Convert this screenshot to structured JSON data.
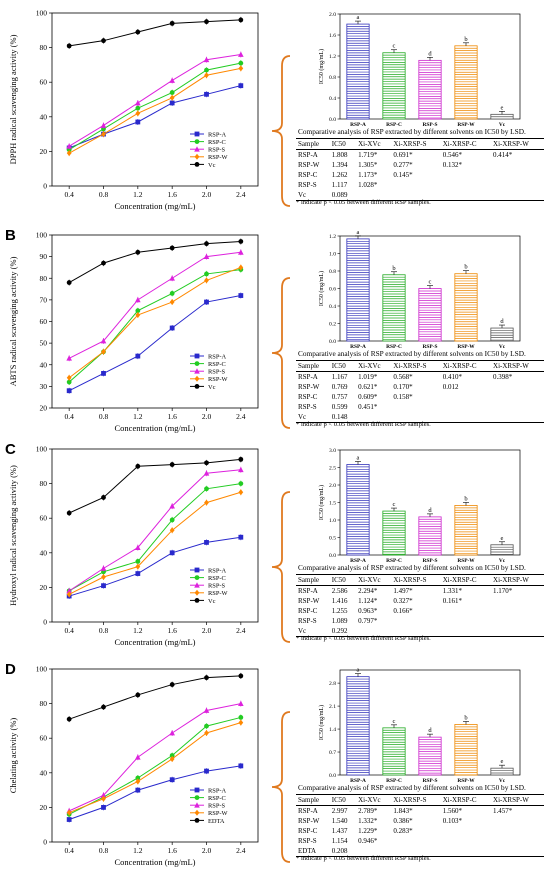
{
  "panels": [
    {
      "letter": "",
      "line": {
        "type": "line",
        "xlabel": "Concentration (mg/mL)",
        "ylabel": "DPPH radical scavenging activity (%)",
        "xlim": [
          0.2,
          2.6
        ],
        "ylim": [
          0,
          100
        ],
        "xticks": [
          "0.4",
          "0.8",
          "1.2",
          "1.6",
          "2.0",
          "2.4"
        ],
        "yticks": [
          0,
          20,
          40,
          60,
          80,
          100
        ],
        "x": [
          0.4,
          0.8,
          1.2,
          1.6,
          2.0,
          2.4
        ],
        "legend_position": "bottom-right",
        "series": [
          {
            "name": "RSP-A",
            "color": "#2929cc",
            "marker": "square",
            "values": [
              22,
              30,
              37,
              48,
              53,
              58
            ]
          },
          {
            "name": "RSP-C",
            "color": "#22cc22",
            "marker": "circle",
            "values": [
              21,
              33,
              45,
              54,
              67,
              71
            ]
          },
          {
            "name": "RSP-S",
            "color": "#dd22dd",
            "marker": "triangle",
            "values": [
              23,
              35,
              48,
              61,
              73,
              76
            ]
          },
          {
            "name": "RSP-W",
            "color": "#ff8800",
            "marker": "diamond",
            "values": [
              19,
              30,
              42,
              51,
              64,
              68
            ]
          },
          {
            "name": "Vc",
            "color": "#000000",
            "marker": "circle",
            "values": [
              81,
              84,
              89,
              94,
              95,
              96
            ]
          }
        ]
      },
      "bar": {
        "type": "bar",
        "ylabel": "IC50 (mg/mL)",
        "ylim": [
          0,
          2.0
        ],
        "yticks": [
          "0.0",
          "0.4",
          "0.8",
          "1.2",
          "1.6",
          "2.0"
        ],
        "categories": [
          "RSP-A",
          "RSP-C",
          "RSP-S",
          "RSP-W",
          "Vc"
        ],
        "values": [
          1.808,
          1.262,
          1.117,
          1.394,
          0.089
        ],
        "letters": [
          "a",
          "c",
          "d",
          "b",
          "e"
        ],
        "colors": [
          "#3333bb",
          "#22aa22",
          "#cc22cc",
          "#ee8800",
          "#555555"
        ]
      },
      "table": {
        "caption": "Comparative analysis of RSP extracted by different solvents on IC50 by LSD.",
        "header": [
          "Sample",
          "IC50",
          "Xi-XVc",
          "Xi-XRSP-S",
          "Xi-XRSP-C",
          "Xi-XRSP-W"
        ],
        "rows": [
          [
            "RSP-A",
            "1.808",
            "1.719*",
            "0.691*",
            "0.546*",
            "0.414*"
          ],
          [
            "RSP-W",
            "1.394",
            "1.305*",
            "0.277*",
            "0.132*",
            ""
          ],
          [
            "RSP-C",
            "1.262",
            "1.173*",
            "0.145*",
            "",
            ""
          ],
          [
            "RSP-S",
            "1.117",
            "1.028*",
            "",
            "",
            ""
          ],
          [
            "Vc",
            "0.089",
            "",
            "",
            "",
            ""
          ]
        ],
        "note": "* indicate p < 0.05 between different RSP samples."
      }
    },
    {
      "letter": "B",
      "line": {
        "type": "line",
        "xlabel": "Concentration (mg/mL)",
        "ylabel": "ABTS radical scavenging activity (%)",
        "xlim": [
          0.2,
          2.6
        ],
        "ylim": [
          20,
          100
        ],
        "xticks": [
          "0.4",
          "0.8",
          "1.2",
          "1.6",
          "2.0",
          "2.4"
        ],
        "yticks": [
          20,
          30,
          40,
          50,
          60,
          70,
          80,
          90,
          100
        ],
        "x": [
          0.4,
          0.8,
          1.2,
          1.6,
          2.0,
          2.4
        ],
        "legend_position": "bottom-right",
        "series": [
          {
            "name": "RSP-A",
            "color": "#2929cc",
            "marker": "square",
            "values": [
              28,
              36,
              44,
              57,
              69,
              72
            ]
          },
          {
            "name": "RSP-C",
            "color": "#22cc22",
            "marker": "circle",
            "values": [
              32,
              46,
              65,
              73,
              82,
              84
            ]
          },
          {
            "name": "RSP-S",
            "color": "#dd22dd",
            "marker": "triangle",
            "values": [
              43,
              51,
              70,
              80,
              90,
              92
            ]
          },
          {
            "name": "RSP-W",
            "color": "#ff8800",
            "marker": "diamond",
            "values": [
              34,
              46,
              63,
              69,
              79,
              85
            ]
          },
          {
            "name": "Vc",
            "color": "#000000",
            "marker": "circle",
            "values": [
              78,
              87,
              92,
              94,
              96,
              97
            ]
          }
        ]
      },
      "bar": {
        "type": "bar",
        "ylabel": "IC50 (mg/mL)",
        "ylim": [
          0,
          1.2
        ],
        "yticks": [
          "0.0",
          "0.2",
          "0.4",
          "0.6",
          "0.8",
          "1.0",
          "1.2"
        ],
        "categories": [
          "RSP-A",
          "RSP-C",
          "RSP-S",
          "RSP-W",
          "Vc"
        ],
        "values": [
          1.167,
          0.757,
          0.599,
          0.769,
          0.148
        ],
        "letters": [
          "a",
          "b",
          "c",
          "b",
          "d"
        ],
        "colors": [
          "#3333bb",
          "#22aa22",
          "#cc22cc",
          "#ee8800",
          "#555555"
        ]
      },
      "table": {
        "caption": "Comparative analysis of RSP extracted by different solvents on IC50 by LSD.",
        "header": [
          "Sample",
          "IC50",
          "Xi-XVc",
          "Xi-XRSP-S",
          "Xi-XRSP-C",
          "Xi-XRSP-W"
        ],
        "rows": [
          [
            "RSP-A",
            "1.167",
            "1.019*",
            "0.568*",
            "0.410*",
            "0.398*"
          ],
          [
            "RSP-W",
            "0.769",
            "0.621*",
            "0.170*",
            "0.012",
            ""
          ],
          [
            "RSP-C",
            "0.757",
            "0.609*",
            "0.158*",
            "",
            ""
          ],
          [
            "RSP-S",
            "0.599",
            "0.451*",
            "",
            "",
            ""
          ],
          [
            "Vc",
            "0.148",
            "",
            "",
            "",
            ""
          ]
        ],
        "note": "* indicate p < 0.05 between different RSP samples."
      }
    },
    {
      "letter": "C",
      "line": {
        "type": "line",
        "xlabel": "Concentration (mg/mL)",
        "ylabel": "Hydroxyl radical scavenging activity (%)",
        "xlim": [
          0.2,
          2.6
        ],
        "ylim": [
          0,
          100
        ],
        "xticks": [
          "0.4",
          "0.8",
          "1.2",
          "1.6",
          "2.0",
          "2.4"
        ],
        "yticks": [
          0,
          20,
          40,
          60,
          80,
          100
        ],
        "x": [
          0.4,
          0.8,
          1.2,
          1.6,
          2.0,
          2.4
        ],
        "legend_position": "bottom-right",
        "series": [
          {
            "name": "RSP-A",
            "color": "#2929cc",
            "marker": "square",
            "values": [
              15,
              21,
              28,
              40,
              46,
              49
            ]
          },
          {
            "name": "RSP-C",
            "color": "#22cc22",
            "marker": "circle",
            "values": [
              18,
              29,
              35,
              59,
              77,
              80
            ]
          },
          {
            "name": "RSP-S",
            "color": "#dd22dd",
            "marker": "triangle",
            "values": [
              18,
              31,
              43,
              67,
              86,
              88
            ]
          },
          {
            "name": "RSP-W",
            "color": "#ff8800",
            "marker": "diamond",
            "values": [
              16,
              26,
              32,
              53,
              69,
              75
            ]
          },
          {
            "name": "Vc",
            "color": "#000000",
            "marker": "circle",
            "values": [
              63,
              72,
              90,
              91,
              92,
              94
            ]
          }
        ]
      },
      "bar": {
        "type": "bar",
        "ylabel": "IC50 (mg/mL)",
        "ylim": [
          0,
          3.0
        ],
        "yticks": [
          "0.0",
          "0.5",
          "1.0",
          "1.5",
          "2.0",
          "2.5",
          "3.0"
        ],
        "categories": [
          "RSP-A",
          "RSP-C",
          "RSP-S",
          "RSP-W",
          "Vc"
        ],
        "values": [
          2.586,
          1.255,
          1.089,
          1.416,
          0.292
        ],
        "letters": [
          "a",
          "c",
          "d",
          "b",
          "e"
        ],
        "colors": [
          "#3333bb",
          "#22aa22",
          "#cc22cc",
          "#ee8800",
          "#555555"
        ]
      },
      "table": {
        "caption": "Comparative analysis of RSP extracted by different solvents on IC50 by LSD.",
        "header": [
          "Sample",
          "IC50",
          "Xi-XVc",
          "Xi-XRSP-S",
          "Xi-XRSP-C",
          "Xi-XRSP-W"
        ],
        "rows": [
          [
            "RSP-A",
            "2.586",
            "2.294*",
            "1.497*",
            "1.331*",
            "1.170*"
          ],
          [
            "RSP-W",
            "1.416",
            "1.124*",
            "0.327*",
            "0.161*",
            ""
          ],
          [
            "RSP-C",
            "1.255",
            "0.963*",
            "0.166*",
            "",
            ""
          ],
          [
            "RSP-S",
            "1.089",
            "0.797*",
            "",
            "",
            ""
          ],
          [
            "Vc",
            "0.292",
            "",
            "",
            "",
            ""
          ]
        ],
        "note": "* indicate p < 0.05 between different RSP samples."
      }
    },
    {
      "letter": "D",
      "line": {
        "type": "line",
        "xlabel": "Concentration (mg/mL)",
        "ylabel": "Chelating activity (%)",
        "xlim": [
          0.2,
          2.6
        ],
        "ylim": [
          0,
          100
        ],
        "xticks": [
          "0.4",
          "0.8",
          "1.2",
          "1.6",
          "2.0",
          "2.4"
        ],
        "yticks": [
          0,
          20,
          40,
          60,
          80,
          100
        ],
        "x": [
          0.4,
          0.8,
          1.2,
          1.6,
          2.0,
          2.4
        ],
        "legend_position": "bottom-right",
        "series": [
          {
            "name": "RSP-A",
            "color": "#2929cc",
            "marker": "square",
            "values": [
              13,
              20,
              30,
              36,
              41,
              44
            ]
          },
          {
            "name": "RSP-C",
            "color": "#22cc22",
            "marker": "circle",
            "values": [
              16,
              26,
              37,
              50,
              67,
              72
            ]
          },
          {
            "name": "RSP-S",
            "color": "#dd22dd",
            "marker": "triangle",
            "values": [
              18,
              27,
              49,
              63,
              76,
              80
            ]
          },
          {
            "name": "RSP-W",
            "color": "#ff8800",
            "marker": "diamond",
            "values": [
              17,
              25,
              35,
              48,
              63,
              69
            ]
          },
          {
            "name": "EDTA",
            "color": "#000000",
            "marker": "circle",
            "values": [
              71,
              78,
              85,
              91,
              95,
              96
            ]
          }
        ]
      },
      "bar": {
        "type": "bar",
        "ylabel": "IC50 (mg/mL)",
        "ylim": [
          0,
          3.2
        ],
        "yticks": [
          "0.0",
          "0.7",
          "1.4",
          "2.1",
          "2.8"
        ],
        "categories": [
          "RSP-A",
          "RSP-C",
          "RSP-S",
          "RSP-W",
          "Vc"
        ],
        "values": [
          2.997,
          1.437,
          1.154,
          1.54,
          0.208
        ],
        "letters": [
          "a",
          "c",
          "d",
          "b",
          "e"
        ],
        "colors": [
          "#3333bb",
          "#22aa22",
          "#cc22cc",
          "#ee8800",
          "#555555"
        ]
      },
      "table": {
        "caption": "Comparative analysis of RSP extracted by different solvents on IC50 by LSD.",
        "header": [
          "Sample",
          "IC50",
          "Xi-XVc",
          "Xi-XRSP-S",
          "Xi-XRSP-C",
          "Xi-XRSP-W"
        ],
        "rows": [
          [
            "RSP-A",
            "2.997",
            "2.789*",
            "1.843*",
            "1.560*",
            "1.457*"
          ],
          [
            "RSP-W",
            "1.540",
            "1.332*",
            "0.386*",
            "0.103*",
            ""
          ],
          [
            "RSP-C",
            "1.437",
            "1.229*",
            "0.283*",
            "",
            ""
          ],
          [
            "RSP-S",
            "1.154",
            "0.946*",
            "",
            "",
            ""
          ],
          [
            "EDTA",
            "0.208",
            "",
            "",
            "",
            ""
          ]
        ],
        "note": "* indicate p < 0.05 between different RSP samples."
      }
    }
  ],
  "colors": {
    "brace": "#e07a20"
  }
}
